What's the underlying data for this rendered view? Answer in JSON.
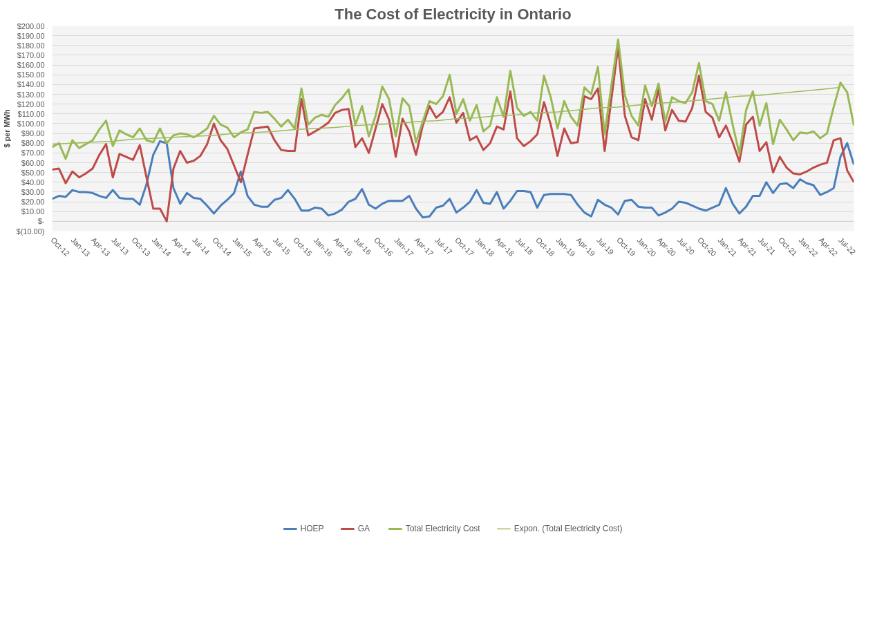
{
  "chart_data": {
    "type": "line",
    "title": "The Cost of Electricity in Ontario",
    "ylabel": "$ per MWh",
    "x": [
      "2012-10",
      "2012-11",
      "2012-12",
      "2013-01",
      "2013-02",
      "2013-03",
      "2013-04",
      "2013-05",
      "2013-06",
      "2013-07",
      "2013-08",
      "2013-09",
      "2013-10",
      "2013-11",
      "2013-12",
      "2014-01",
      "2014-02",
      "2014-03",
      "2014-04",
      "2014-05",
      "2014-06",
      "2014-07",
      "2014-08",
      "2014-09",
      "2014-10",
      "2014-11",
      "2014-12",
      "2015-01",
      "2015-02",
      "2015-03",
      "2015-04",
      "2015-05",
      "2015-06",
      "2015-07",
      "2015-08",
      "2015-09",
      "2015-10",
      "2015-11",
      "2015-12",
      "2016-01",
      "2016-02",
      "2016-03",
      "2016-04",
      "2016-05",
      "2016-06",
      "2016-07",
      "2016-08",
      "2016-09",
      "2016-10",
      "2016-11",
      "2016-12",
      "2017-01",
      "2017-02",
      "2017-03",
      "2017-04",
      "2017-05",
      "2017-06",
      "2017-07",
      "2017-08",
      "2017-09",
      "2017-10",
      "2017-11",
      "2017-12",
      "2018-01",
      "2018-02",
      "2018-03",
      "2018-04",
      "2018-05",
      "2018-06",
      "2018-07",
      "2018-08",
      "2018-09",
      "2018-10",
      "2018-11",
      "2018-12",
      "2019-01",
      "2019-02",
      "2019-03",
      "2019-04",
      "2019-05",
      "2019-06",
      "2019-07",
      "2019-08",
      "2019-09",
      "2019-10",
      "2019-11",
      "2019-12",
      "2020-01",
      "2020-02",
      "2020-03",
      "2020-04",
      "2020-05",
      "2020-06",
      "2020-07",
      "2020-08",
      "2020-09",
      "2020-10",
      "2020-11",
      "2020-12",
      "2021-01",
      "2021-02",
      "2021-03",
      "2021-04",
      "2021-05",
      "2021-06",
      "2021-07",
      "2021-08",
      "2021-09",
      "2021-10",
      "2021-11",
      "2021-12",
      "2022-01",
      "2022-02",
      "2022-03",
      "2022-04",
      "2022-05",
      "2022-06",
      "2022-07",
      "2022-08",
      "2022-09"
    ],
    "series": [
      {
        "name": "HOEP",
        "color": "#4a7ebb",
        "values": [
          23,
          26,
          25,
          32,
          30,
          30,
          29,
          26,
          24,
          32,
          24,
          23,
          23,
          17,
          38,
          68,
          82,
          80,
          34,
          18,
          29,
          24,
          23,
          16,
          8,
          16,
          22,
          29,
          51,
          26,
          17,
          15,
          15,
          22,
          24,
          32,
          23,
          11,
          11,
          14,
          13,
          6,
          8,
          12,
          20,
          23,
          33,
          17,
          13,
          18,
          21,
          21,
          21,
          26,
          13,
          4,
          5,
          14,
          16,
          23,
          9,
          14,
          20,
          32,
          19,
          18,
          30,
          13,
          21,
          31,
          31,
          30,
          14,
          27,
          28,
          28,
          28,
          27,
          17,
          9,
          5,
          22,
          17,
          14,
          7,
          21,
          22,
          15,
          14,
          14,
          6,
          9,
          13,
          20,
          19,
          16,
          13,
          11,
          14,
          17,
          34,
          18,
          8,
          15,
          26,
          26,
          40,
          29,
          38,
          39,
          34,
          43,
          39,
          37,
          27,
          30,
          34,
          66,
          80,
          58
        ]
      },
      {
        "name": "GA",
        "color": "#be4b48",
        "values": [
          53,
          54,
          39,
          51,
          45,
          49,
          54,
          68,
          79,
          45,
          69,
          66,
          63,
          78,
          45,
          13,
          13,
          0,
          54,
          72,
          60,
          62,
          67,
          79,
          100,
          83,
          74,
          57,
          40,
          68,
          95,
          96,
          97,
          83,
          73,
          72,
          72,
          125,
          88,
          92,
          96,
          101,
          111,
          114,
          115,
          76,
          85,
          70,
          95,
          120,
          104,
          66,
          105,
          92,
          68,
          98,
          118,
          106,
          112,
          127,
          101,
          111,
          83,
          87,
          73,
          80,
          97,
          94,
          133,
          85,
          77,
          82,
          89,
          122,
          99,
          67,
          95,
          80,
          81,
          128,
          125,
          136,
          72,
          125,
          179,
          108,
          86,
          83,
          125,
          104,
          135,
          93,
          114,
          103,
          102,
          116,
          149,
          112,
          106,
          86,
          98,
          81,
          61,
          99,
          107,
          72,
          81,
          50,
          66,
          55,
          49,
          48,
          51,
          55,
          58,
          60,
          83,
          85,
          52,
          40
        ]
      },
      {
        "name": "Total Electricity Cost",
        "color": "#98b954",
        "values": [
          76,
          80,
          64,
          83,
          75,
          79,
          83,
          94,
          103,
          77,
          93,
          89,
          86,
          95,
          83,
          81,
          95,
          80,
          88,
          90,
          89,
          86,
          90,
          95,
          108,
          99,
          96,
          86,
          91,
          94,
          112,
          111,
          112,
          105,
          97,
          104,
          95,
          136,
          99,
          106,
          109,
          107,
          119,
          126,
          135,
          99,
          118,
          87,
          108,
          138,
          125,
          87,
          126,
          118,
          81,
          102,
          123,
          120,
          128,
          150,
          110,
          125,
          103,
          119,
          92,
          98,
          127,
          107,
          154,
          116,
          108,
          112,
          103,
          149,
          127,
          95,
          123,
          107,
          98,
          137,
          130,
          158,
          89,
          139,
          186,
          129,
          108,
          98,
          139,
          118,
          141,
          102,
          127,
          123,
          121,
          132,
          162,
          123,
          120,
          103,
          132,
          99,
          69,
          114,
          133,
          98,
          121,
          79,
          104,
          94,
          83,
          91,
          90,
          92,
          85,
          90,
          117,
          142,
          132,
          98
        ]
      },
      {
        "name": "Expon. (Total Electricity Cost)",
        "color": "#9bbb59",
        "x": [
          "2012-10",
          "2013-01",
          "2013-04",
          "2013-07",
          "2013-10",
          "2014-01",
          "2014-04",
          "2014-07",
          "2014-10",
          "2015-01",
          "2015-04",
          "2015-07",
          "2015-10",
          "2016-01",
          "2016-04",
          "2016-07",
          "2016-10",
          "2017-01",
          "2017-04",
          "2017-07",
          "2017-10",
          "2018-01",
          "2018-04",
          "2018-07",
          "2018-10",
          "2019-01",
          "2019-04",
          "2019-07",
          "2019-10",
          "2020-01",
          "2020-04",
          "2020-07",
          "2020-10",
          "2021-01",
          "2021-04",
          "2021-07",
          "2021-10",
          "2022-01",
          "2022-04",
          "2022-07"
        ],
        "values": [
          79,
          80,
          81,
          82,
          84,
          85,
          86,
          87,
          88,
          90,
          91,
          92,
          94,
          95,
          96,
          98,
          99,
          100,
          102,
          103,
          105,
          106,
          108,
          109,
          111,
          112,
          114,
          116,
          117,
          119,
          121,
          122,
          124,
          126,
          128,
          129,
          131,
          133,
          135,
          137
        ]
      }
    ],
    "xlim": [
      "2012-10",
      "2022-09"
    ],
    "xticks": [
      {
        "value": "2012-10",
        "label": "Oct-12"
      },
      {
        "value": "2013-01",
        "label": "Jan-13"
      },
      {
        "value": "2013-04",
        "label": "Apr-13"
      },
      {
        "value": "2013-07",
        "label": "Jul-13"
      },
      {
        "value": "2013-10",
        "label": "Oct-13"
      },
      {
        "value": "2014-01",
        "label": "Jan-14"
      },
      {
        "value": "2014-04",
        "label": "Apr-14"
      },
      {
        "value": "2014-07",
        "label": "Jul-14"
      },
      {
        "value": "2014-10",
        "label": "Oct-14"
      },
      {
        "value": "2015-01",
        "label": "Jan-15"
      },
      {
        "value": "2015-04",
        "label": "Apr-15"
      },
      {
        "value": "2015-07",
        "label": "Jul-15"
      },
      {
        "value": "2015-10",
        "label": "Oct-15"
      },
      {
        "value": "2016-01",
        "label": "Jan-16"
      },
      {
        "value": "2016-04",
        "label": "Apr-16"
      },
      {
        "value": "2016-07",
        "label": "Jul-16"
      },
      {
        "value": "2016-10",
        "label": "Oct-16"
      },
      {
        "value": "2017-01",
        "label": "Jan-17"
      },
      {
        "value": "2017-04",
        "label": "Apr-17"
      },
      {
        "value": "2017-07",
        "label": "Jul-17"
      },
      {
        "value": "2017-10",
        "label": "Oct-17"
      },
      {
        "value": "2018-01",
        "label": "Jan-18"
      },
      {
        "value": "2018-04",
        "label": "Apr-18"
      },
      {
        "value": "2018-07",
        "label": "Jul-18"
      },
      {
        "value": "2018-10",
        "label": "Oct-18"
      },
      {
        "value": "2019-01",
        "label": "Jan-19"
      },
      {
        "value": "2019-04",
        "label": "Apr-19"
      },
      {
        "value": "2019-07",
        "label": "Jul-19"
      },
      {
        "value": "2019-10",
        "label": "Oct-19"
      },
      {
        "value": "2020-01",
        "label": "Jan-20"
      },
      {
        "value": "2020-04",
        "label": "Apr-20"
      },
      {
        "value": "2020-07",
        "label": "Jul-20"
      },
      {
        "value": "2020-10",
        "label": "Oct-20"
      },
      {
        "value": "2021-01",
        "label": "Jan-21"
      },
      {
        "value": "2021-04",
        "label": "Apr-21"
      },
      {
        "value": "2021-07",
        "label": "Jul-21"
      },
      {
        "value": "2021-10",
        "label": "Oct-21"
      },
      {
        "value": "2022-01",
        "label": "Jan-22"
      },
      {
        "value": "2022-04",
        "label": "Apr-22"
      },
      {
        "value": "2022-07",
        "label": "Jul-22"
      }
    ],
    "ylim": [
      -10,
      200
    ],
    "yticks": [
      {
        "value": -10,
        "label": "$(10.00)"
      },
      {
        "value": 0,
        "label": "$-"
      },
      {
        "value": 10,
        "label": "$10.00"
      },
      {
        "value": 20,
        "label": "$20.00"
      },
      {
        "value": 30,
        "label": "$30.00"
      },
      {
        "value": 40,
        "label": "$40.00"
      },
      {
        "value": 50,
        "label": "$50.00"
      },
      {
        "value": 60,
        "label": "$60.00"
      },
      {
        "value": 70,
        "label": "$70.00"
      },
      {
        "value": 80,
        "label": "$80.00"
      },
      {
        "value": 90,
        "label": "$90.00"
      },
      {
        "value": 100,
        "label": "$100.00"
      },
      {
        "value": 110,
        "label": "$110.00"
      },
      {
        "value": 120,
        "label": "$120.00"
      },
      {
        "value": 130,
        "label": "$130.00"
      },
      {
        "value": 140,
        "label": "$140.00"
      },
      {
        "value": 150,
        "label": "$150.00"
      },
      {
        "value": 160,
        "label": "$160.00"
      },
      {
        "value": 170,
        "label": "$170.00"
      },
      {
        "value": 180,
        "label": "$180.00"
      },
      {
        "value": 190,
        "label": "$190.00"
      },
      {
        "value": 200,
        "label": "$200.00"
      }
    ],
    "grid": "y",
    "legend": "bottom",
    "marker": "none",
    "line_style": "solid"
  }
}
